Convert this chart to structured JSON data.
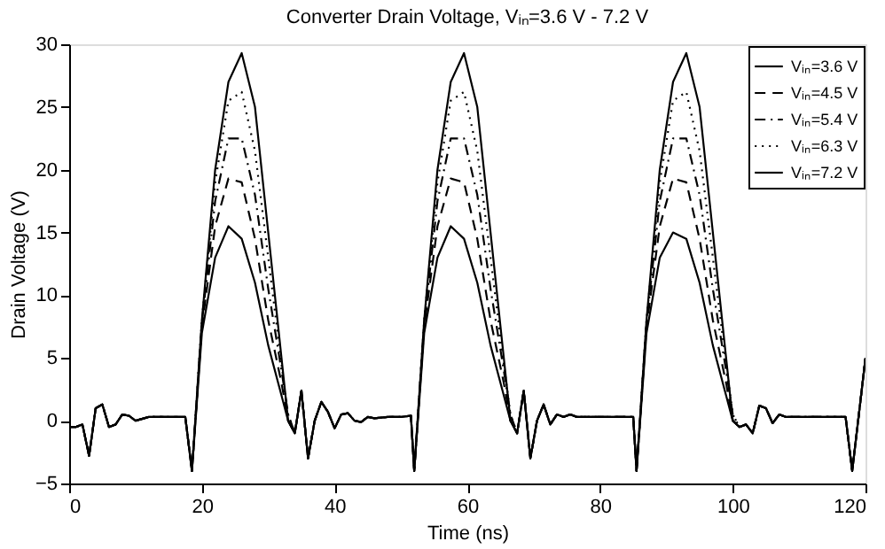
{
  "chart_data": {
    "type": "line",
    "title": "Converter Drain Voltage, Vᵢₙ=3.6 V - 7.2 V",
    "xlabel": "Time (ns)",
    "ylabel": "Drain Voltage (V)",
    "x": [
      0,
      1,
      2,
      3,
      4,
      5,
      6,
      7,
      8,
      9,
      10,
      12,
      14,
      16,
      17.5,
      18.5,
      20,
      22,
      24,
      26,
      28,
      30,
      32,
      33,
      34,
      35,
      36,
      37,
      38,
      39,
      40,
      41,
      42,
      43,
      44,
      45,
      46,
      48,
      50,
      51.5,
      52,
      53.5,
      55.5,
      57.5,
      59.5,
      61.5,
      63.5,
      65.5,
      66.5,
      67.5,
      68.5,
      69.5,
      70.5,
      71.5,
      72.5,
      73.5,
      74.5,
      75.5,
      76.5,
      77.5,
      78.5,
      79.5,
      81.5,
      83.5,
      85,
      85.5,
      87,
      89,
      91,
      93,
      95,
      97,
      99,
      100,
      101,
      102,
      103,
      104,
      105,
      106,
      107,
      108,
      109,
      110,
      111,
      112,
      113,
      115,
      117,
      118,
      119,
      120
    ],
    "series": [
      {
        "name": "Vᵢₙ=3.6 V",
        "color": "#000000",
        "line_style": "solid",
        "values": [
          -0.5,
          -0.5,
          -0.3,
          -2.8,
          1.0,
          1.3,
          -0.5,
          -0.3,
          0.5,
          0.4,
          0,
          0.3,
          0.3,
          0.3,
          0.3,
          -4,
          7,
          13,
          15.5,
          14.5,
          11,
          6,
          2,
          0,
          -1,
          2.4,
          -3,
          0,
          1.5,
          0.7,
          -0.6,
          0.5,
          0.6,
          0,
          -0.1,
          0.3,
          0.2,
          0.3,
          0.3,
          0.4,
          -4,
          7,
          13,
          15.5,
          14.5,
          11,
          6,
          2,
          0,
          -1,
          2.4,
          -3,
          0,
          1.3,
          -0.3,
          0.5,
          0.3,
          0.5,
          0.3,
          0.3,
          0.3,
          0.3,
          0.3,
          0.3,
          0.3,
          -4,
          7,
          13,
          15,
          14.5,
          11,
          6,
          2,
          0,
          -0.5,
          -0.3,
          -1.0,
          1.2,
          1.0,
          -0.2,
          0.5,
          0.3,
          0.3,
          0.3,
          0.3,
          0.3,
          0.3,
          0.3,
          0.3,
          -4,
          0.5,
          5
        ]
      },
      {
        "name": "Vᵢₙ=4.5 V",
        "color": "#000000",
        "line_style": "dashed",
        "values": [
          -0.5,
          -0.5,
          -0.3,
          -2.8,
          1.0,
          1.3,
          -0.5,
          -0.3,
          0.5,
          0.4,
          0,
          0.3,
          0.3,
          0.3,
          0.3,
          -4,
          7.5,
          15.5,
          19.3,
          19,
          14.5,
          8,
          3,
          0,
          -1,
          2.4,
          -3,
          0,
          1.5,
          0.7,
          -0.6,
          0.5,
          0.6,
          0,
          -0.1,
          0.3,
          0.2,
          0.3,
          0.3,
          0.4,
          -4,
          7.5,
          15.5,
          19.3,
          19,
          14.5,
          8,
          3,
          0,
          -1,
          2.4,
          -3,
          0,
          1.3,
          -0.3,
          0.5,
          0.3,
          0.5,
          0.3,
          0.3,
          0.3,
          0.3,
          0.3,
          0.3,
          0.3,
          -4,
          7.5,
          15.5,
          19.3,
          19,
          14.5,
          8,
          3,
          0,
          -0.5,
          -0.3,
          -1.0,
          1.2,
          1.0,
          -0.2,
          0.5,
          0.3,
          0.3,
          0.3,
          0.3,
          0.3,
          0.3,
          0.3,
          0.3,
          -4,
          0.5,
          5
        ]
      },
      {
        "name": "Vᵢₙ=5.4 V",
        "color": "#000000",
        "line_style": "dashdot",
        "values": [
          -0.5,
          -0.5,
          -0.3,
          -2.8,
          1.0,
          1.3,
          -0.5,
          -0.3,
          0.5,
          0.4,
          0,
          0.3,
          0.3,
          0.3,
          0.3,
          -4,
          7.8,
          17.5,
          22.5,
          22.5,
          18,
          10.5,
          4,
          0.5,
          -1,
          2.4,
          -3,
          0,
          1.5,
          0.7,
          -0.6,
          0.5,
          0.6,
          0,
          -0.1,
          0.3,
          0.2,
          0.3,
          0.3,
          0.4,
          -4,
          7.8,
          17.5,
          22.5,
          22.5,
          18,
          10.5,
          4,
          0.5,
          -1,
          2.4,
          -3,
          0,
          1.3,
          -0.3,
          0.5,
          0.3,
          0.5,
          0.3,
          0.3,
          0.3,
          0.3,
          0.3,
          0.3,
          0.3,
          -4,
          7.8,
          17.5,
          22.5,
          22.5,
          18,
          10.5,
          4,
          0.5,
          -0.5,
          -0.3,
          -1.0,
          1.2,
          1.0,
          -0.2,
          0.5,
          0.3,
          0.3,
          0.3,
          0.3,
          0.3,
          0.3,
          0.3,
          0.3,
          -4,
          0.5,
          5
        ]
      },
      {
        "name": "Vᵢₙ=6.3 V",
        "color": "#000000",
        "line_style": "dotted",
        "values": [
          -0.5,
          -0.5,
          -0.3,
          -2.8,
          1.0,
          1.3,
          -0.5,
          -0.3,
          0.5,
          0.4,
          0,
          0.3,
          0.3,
          0.3,
          0.3,
          -4,
          8,
          19,
          25.5,
          26.2,
          21.5,
          13,
          4.5,
          0.5,
          -1,
          2.4,
          -3,
          0,
          1.5,
          0.7,
          -0.6,
          0.5,
          0.6,
          0,
          -0.1,
          0.3,
          0.2,
          0.3,
          0.3,
          0.4,
          -4,
          8,
          19,
          25.5,
          26.2,
          21.5,
          13,
          4.5,
          0.5,
          -1,
          2.4,
          -3,
          0,
          1.3,
          -0.3,
          0.5,
          0.3,
          0.5,
          0.3,
          0.3,
          0.3,
          0.3,
          0.3,
          0.3,
          0.3,
          -4,
          8,
          19,
          25.5,
          26.2,
          21.5,
          13,
          4.5,
          0.5,
          -0.5,
          -0.3,
          -1.0,
          1.2,
          1.0,
          -0.2,
          0.5,
          0.3,
          0.3,
          0.3,
          0.3,
          0.3,
          0.3,
          0.3,
          0.3,
          -4,
          0.5,
          5
        ]
      },
      {
        "name": "Vᵢₙ=7.2 V",
        "color": "#000000",
        "line_style": "solid",
        "values": [
          -0.5,
          -0.5,
          -0.3,
          -2.8,
          1.0,
          1.3,
          -0.5,
          -0.3,
          0.5,
          0.4,
          0,
          0.3,
          0.3,
          0.3,
          0.3,
          -4,
          8,
          20,
          27,
          29.3,
          25,
          15,
          5,
          0,
          -1,
          2.4,
          -3,
          0,
          1.5,
          0.7,
          -0.6,
          0.5,
          0.6,
          0,
          -0.1,
          0.3,
          0.2,
          0.3,
          0.3,
          0.4,
          -4,
          8,
          20,
          27,
          29.3,
          25,
          15,
          5,
          0,
          -1,
          2.4,
          -3,
          0,
          1.3,
          -0.3,
          0.5,
          0.3,
          0.5,
          0.3,
          0.3,
          0.3,
          0.3,
          0.3,
          0.3,
          0.3,
          -4,
          8,
          20,
          27,
          29.3,
          25,
          15,
          5,
          0,
          -0.5,
          -0.3,
          -1.0,
          1.2,
          1.0,
          -0.2,
          0.5,
          0.3,
          0.3,
          0.3,
          0.3,
          0.3,
          0.3,
          0.3,
          0.3,
          -4,
          0.5,
          5
        ]
      }
    ],
    "xlim": [
      0,
      120
    ],
    "xticks": [
      0,
      20,
      40,
      60,
      80,
      100,
      120
    ],
    "ylim": [
      -5,
      30
    ],
    "yticks": [
      -5,
      0,
      5,
      10,
      15,
      20,
      25,
      30
    ],
    "legend": "top right"
  }
}
